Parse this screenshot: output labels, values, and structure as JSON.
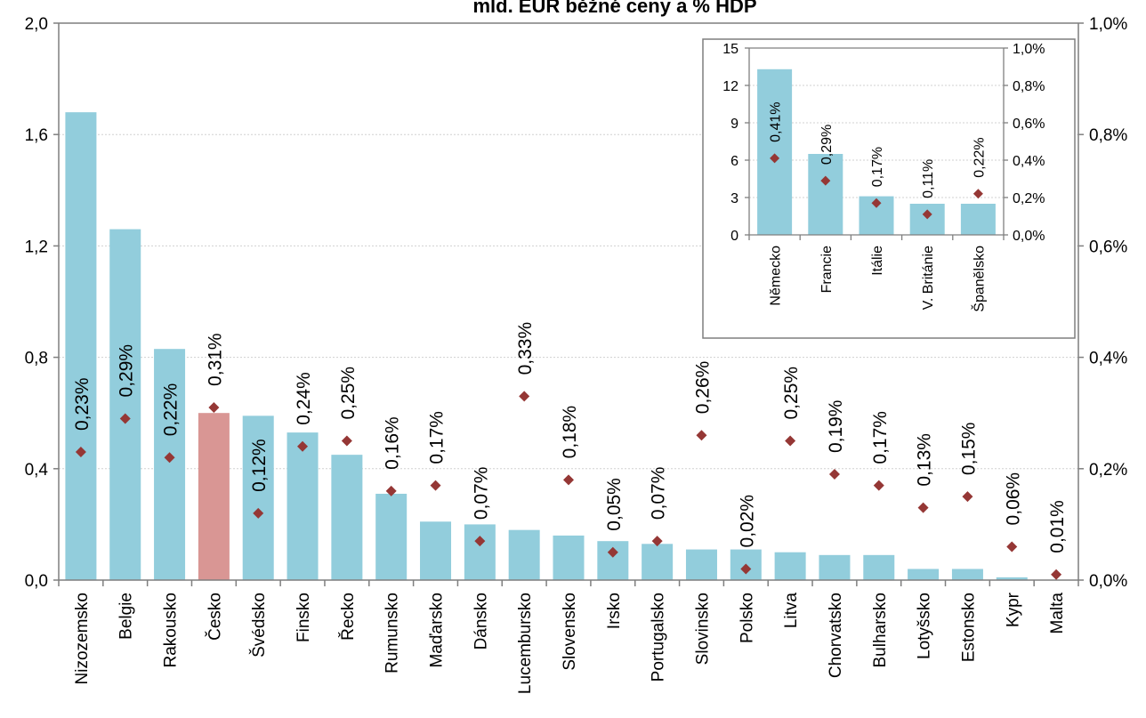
{
  "chart_data": [
    {
      "type": "bar",
      "title": "mld. EUR běžné ceny a % HDP",
      "categories": [
        "Nizozemsko",
        "Belgie",
        "Rakousko",
        "Česko",
        "Švédsko",
        "Finsko",
        "Řecko",
        "Rumunsko",
        "Maďarsko",
        "Dánsko",
        "Lucembursko",
        "Slovensko",
        "Irsko",
        "Portugalsko",
        "Slovinsko",
        "Polsko",
        "Litva",
        "Chorvatsko",
        "Bulharsko",
        "Lotyšsko",
        "Estonsko",
        "Kypr",
        "Malta"
      ],
      "series": [
        {
          "axis": "left",
          "values": [
            1.68,
            1.26,
            0.83,
            0.6,
            0.59,
            0.53,
            0.45,
            0.31,
            0.21,
            0.2,
            0.18,
            0.16,
            0.14,
            0.13,
            0.11,
            0.11,
            0.1,
            0.09,
            0.09,
            0.04,
            0.04,
            0.01,
            0.0
          ],
          "color": "#92cddc",
          "highlight": {
            "index": 3,
            "color": "#d99694"
          }
        },
        {
          "axis": "right",
          "marker": "diamond",
          "values": [
            0.23,
            0.29,
            0.22,
            0.31,
            0.12,
            0.24,
            0.25,
            0.16,
            0.17,
            0.07,
            0.33,
            0.18,
            0.05,
            0.07,
            0.26,
            0.02,
            0.25,
            0.19,
            0.17,
            0.13,
            0.15,
            0.06,
            0.01
          ],
          "labels": [
            "0,23%",
            "0,29%",
            "0,22%",
            "0,31%",
            "0,12%",
            "0,24%",
            "0,25%",
            "0,16%",
            "0,17%",
            "0,07%",
            "0,33%",
            "0,18%",
            "0,05%",
            "0,07%",
            "0,26%",
            "0,02%",
            "0,25%",
            "0,19%",
            "0,17%",
            "0,13%",
            "0,15%",
            "0,06%",
            "0,01%"
          ],
          "color": "#953735"
        }
      ],
      "ylim": [
        0,
        2.0
      ],
      "yticks": [
        "0,0",
        "0,4",
        "0,8",
        "1,2",
        "1,6",
        "2,0"
      ],
      "y2lim": [
        0,
        1.0
      ],
      "y2ticks": [
        "0,0%",
        "0,2%",
        "0,4%",
        "0,6%",
        "0,8%",
        "1,0%"
      ],
      "grid": true
    },
    {
      "type": "bar",
      "inset": true,
      "categories": [
        "Německo",
        "Francie",
        "Itálie",
        "V. Británie",
        "Španělsko"
      ],
      "series": [
        {
          "axis": "left",
          "values": [
            13.3,
            6.5,
            3.1,
            2.5,
            2.5
          ],
          "color": "#92cddc"
        },
        {
          "axis": "right",
          "marker": "diamond",
          "values": [
            0.41,
            0.29,
            0.17,
            0.11,
            0.22
          ],
          "labels": [
            "0,41%",
            "0,29%",
            "0,17%",
            "0,11%",
            "0,22%"
          ],
          "color": "#953735"
        }
      ],
      "ylim": [
        0,
        15
      ],
      "yticks": [
        "0",
        "3",
        "6",
        "9",
        "12",
        "15"
      ],
      "y2lim": [
        0,
        1.0
      ],
      "y2ticks": [
        "0,0%",
        "0,2%",
        "0,4%",
        "0,6%",
        "0,8%",
        "1,0%"
      ],
      "grid": true
    }
  ]
}
